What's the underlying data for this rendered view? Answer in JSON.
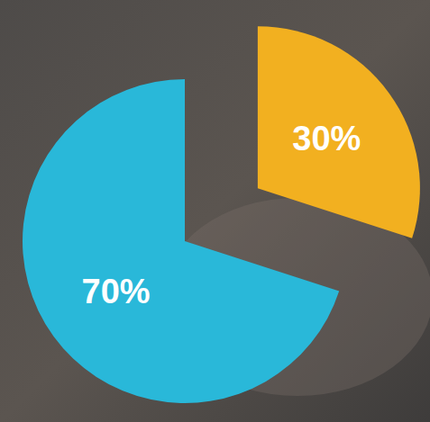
{
  "chart_data": {
    "type": "pie",
    "values": [
      30,
      70
    ],
    "value_labels": [
      "30%",
      "70%"
    ],
    "colors": [
      "#f2b020",
      "#29b8d9"
    ],
    "data_labels": true
  }
}
